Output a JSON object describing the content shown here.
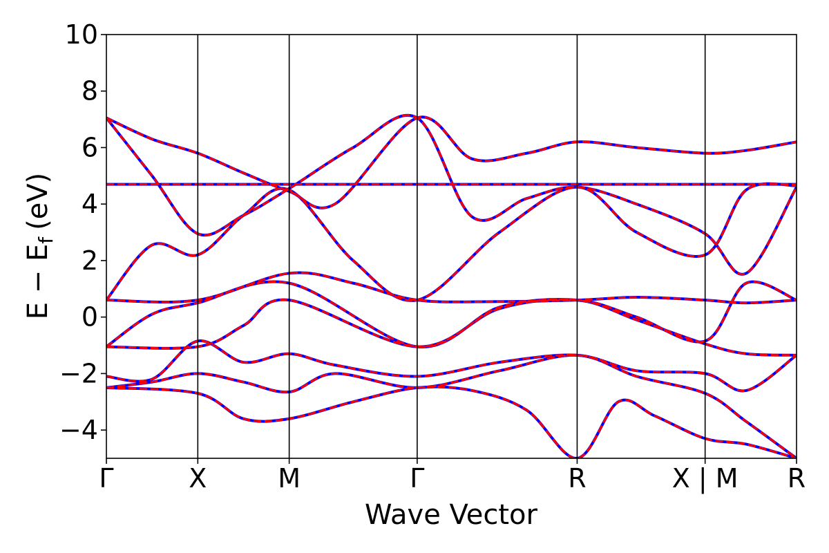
{
  "chart_data": {
    "type": "line",
    "title": "",
    "xlabel": "Wave Vector",
    "ylabel": "E − E",
    "ylabel_subscript": "f",
    "ylabel_unit": "(eV)",
    "ylim": [
      -5,
      10
    ],
    "yticks": [
      -4,
      -2,
      0,
      2,
      4,
      6,
      8,
      10
    ],
    "ytick_labels": [
      "−4",
      "−2",
      "0",
      "2",
      "4",
      "6",
      "8",
      "10"
    ],
    "grid": false,
    "legend": "none",
    "colors": {
      "primary_series": "#0000ff",
      "secondary_series": "#ff0000",
      "kpoint_lines": "#000000"
    },
    "x_segments": [
      {
        "from": 0,
        "to": 1,
        "count": 5
      }
    ],
    "kpoints": [
      {
        "x": 0.0,
        "label": "Γ"
      },
      {
        "x": 0.1,
        "label": "X"
      },
      {
        "x": 0.2,
        "label": "M"
      },
      {
        "x": 0.34,
        "label": "Γ"
      },
      {
        "x": 0.515,
        "label": "R"
      },
      {
        "x": 0.655,
        "label": "X | M"
      },
      {
        "x": 0.755,
        "label": "R"
      }
    ],
    "series": [
      {
        "color": "#0000ff",
        "style": "solid",
        "bands": [
          [
            [
              0,
              7.05
            ],
            [
              0.05,
              6.3
            ],
            [
              0.1,
              5.8
            ],
            [
              0.15,
              5.1
            ],
            [
              0.2,
              4.45
            ],
            [
              0.25,
              4.0
            ],
            [
              0.34,
              7.05
            ],
            [
              0.4,
              5.6
            ],
            [
              0.46,
              5.8
            ],
            [
              0.515,
              6.2
            ],
            [
              0.58,
              6.0
            ],
            [
              0.655,
              5.8
            ],
            [
              0.7,
              5.9
            ],
            [
              0.755,
              6.2
            ]
          ],
          [
            [
              0,
              7.05
            ],
            [
              0.05,
              5.0
            ],
            [
              0.1,
              2.95
            ],
            [
              0.15,
              3.6
            ],
            [
              0.2,
              4.55
            ],
            [
              0.27,
              6.0
            ],
            [
              0.34,
              7.05
            ],
            [
              0.4,
              3.55
            ],
            [
              0.46,
              4.2
            ],
            [
              0.515,
              4.6
            ],
            [
              0.58,
              4.0
            ],
            [
              0.655,
              2.95
            ],
            [
              0.7,
              1.55
            ],
            [
              0.755,
              4.6
            ]
          ],
          [
            [
              0,
              4.7
            ],
            [
              0.2,
              4.7
            ],
            [
              0.34,
              4.7
            ],
            [
              0.515,
              4.7
            ],
            [
              0.655,
              4.7
            ],
            [
              0.755,
              4.7
            ]
          ],
          [
            [
              0,
              0.6
            ],
            [
              0.05,
              2.55
            ],
            [
              0.1,
              2.2
            ],
            [
              0.15,
              3.6
            ],
            [
              0.2,
              4.5
            ],
            [
              0.27,
              2.0
            ],
            [
              0.34,
              0.6
            ],
            [
              0.43,
              3.0
            ],
            [
              0.515,
              4.6
            ],
            [
              0.58,
              3.0
            ],
            [
              0.655,
              2.2
            ],
            [
              0.7,
              4.5
            ],
            [
              0.755,
              4.65
            ]
          ],
          [
            [
              0,
              0.6
            ],
            [
              0.1,
              0.6
            ],
            [
              0.2,
              1.55
            ],
            [
              0.27,
              1.2
            ],
            [
              0.34,
              0.6
            ],
            [
              0.43,
              0.55
            ],
            [
              0.515,
              0.6
            ],
            [
              0.58,
              0.7
            ],
            [
              0.655,
              0.6
            ],
            [
              0.7,
              0.5
            ],
            [
              0.755,
              0.6
            ]
          ],
          [
            [
              0,
              -1.05
            ],
            [
              0.05,
              0.1
            ],
            [
              0.1,
              0.5
            ],
            [
              0.2,
              1.2
            ],
            [
              0.34,
              -1.05
            ],
            [
              0.43,
              0.35
            ],
            [
              0.515,
              0.6
            ],
            [
              0.58,
              0.0
            ],
            [
              0.655,
              -0.85
            ],
            [
              0.7,
              1.2
            ],
            [
              0.755,
              0.6
            ]
          ],
          [
            [
              0,
              -1.05
            ],
            [
              0.1,
              -1.05
            ],
            [
              0.15,
              -0.3
            ],
            [
              0.2,
              0.6
            ],
            [
              0.34,
              -1.05
            ],
            [
              0.43,
              0.3
            ],
            [
              0.515,
              0.6
            ],
            [
              0.58,
              -0.1
            ],
            [
              0.655,
              -0.95
            ],
            [
              0.7,
              -1.3
            ],
            [
              0.755,
              -1.35
            ]
          ],
          [
            [
              0,
              -2.1
            ],
            [
              0.05,
              -2.2
            ],
            [
              0.1,
              -0.85
            ],
            [
              0.15,
              -1.6
            ],
            [
              0.2,
              -1.3
            ],
            [
              0.25,
              -1.7
            ],
            [
              0.34,
              -2.1
            ],
            [
              0.43,
              -1.6
            ],
            [
              0.515,
              -1.35
            ],
            [
              0.58,
              -1.9
            ],
            [
              0.655,
              -2.0
            ],
            [
              0.7,
              -2.6
            ],
            [
              0.755,
              -1.35
            ]
          ],
          [
            [
              0,
              -2.5
            ],
            [
              0.05,
              -2.3
            ],
            [
              0.1,
              -2.0
            ],
            [
              0.15,
              -2.3
            ],
            [
              0.2,
              -2.65
            ],
            [
              0.25,
              -2.0
            ],
            [
              0.34,
              -2.5
            ],
            [
              0.43,
              -1.9
            ],
            [
              0.515,
              -1.35
            ],
            [
              0.58,
              -2.1
            ],
            [
              0.655,
              -2.7
            ],
            [
              0.7,
              -3.7
            ],
            [
              0.755,
              -5.0
            ]
          ],
          [
            [
              0,
              -2.5
            ],
            [
              0.1,
              -2.7
            ],
            [
              0.15,
              -3.6
            ],
            [
              0.2,
              -3.6
            ],
            [
              0.27,
              -3.0
            ],
            [
              0.34,
              -2.5
            ],
            [
              0.4,
              -2.6
            ],
            [
              0.46,
              -3.3
            ],
            [
              0.515,
              -5.0
            ],
            [
              0.56,
              -3.0
            ],
            [
              0.6,
              -3.5
            ],
            [
              0.655,
              -4.3
            ],
            [
              0.7,
              -4.5
            ],
            [
              0.755,
              -5.0
            ]
          ]
        ]
      },
      {
        "color": "#ff0000",
        "style": "dashed",
        "bands": [
          [
            [
              0,
              7.05
            ],
            [
              0.05,
              6.3
            ],
            [
              0.1,
              5.8
            ],
            [
              0.15,
              5.1
            ],
            [
              0.2,
              4.45
            ],
            [
              0.25,
              4.0
            ],
            [
              0.34,
              7.05
            ],
            [
              0.4,
              5.6
            ],
            [
              0.46,
              5.8
            ],
            [
              0.515,
              6.2
            ],
            [
              0.58,
              6.0
            ],
            [
              0.655,
              5.8
            ],
            [
              0.7,
              5.9
            ],
            [
              0.755,
              6.2
            ]
          ],
          [
            [
              0,
              7.05
            ],
            [
              0.05,
              5.0
            ],
            [
              0.1,
              2.95
            ],
            [
              0.15,
              3.6
            ],
            [
              0.2,
              4.55
            ],
            [
              0.27,
              6.0
            ],
            [
              0.34,
              7.05
            ],
            [
              0.4,
              3.55
            ],
            [
              0.46,
              4.2
            ],
            [
              0.515,
              4.6
            ],
            [
              0.58,
              4.0
            ],
            [
              0.655,
              2.95
            ],
            [
              0.7,
              1.55
            ],
            [
              0.755,
              4.6
            ]
          ],
          [
            [
              0,
              4.7
            ],
            [
              0.2,
              4.7
            ],
            [
              0.34,
              4.7
            ],
            [
              0.515,
              4.7
            ],
            [
              0.655,
              4.7
            ],
            [
              0.755,
              4.7
            ]
          ],
          [
            [
              0,
              0.6
            ],
            [
              0.05,
              2.55
            ],
            [
              0.1,
              2.2
            ],
            [
              0.15,
              3.6
            ],
            [
              0.2,
              4.5
            ],
            [
              0.27,
              2.0
            ],
            [
              0.34,
              0.6
            ],
            [
              0.43,
              3.0
            ],
            [
              0.515,
              4.6
            ],
            [
              0.58,
              3.0
            ],
            [
              0.655,
              2.2
            ],
            [
              0.7,
              4.5
            ],
            [
              0.755,
              4.65
            ]
          ],
          [
            [
              0,
              0.6
            ],
            [
              0.1,
              0.6
            ],
            [
              0.2,
              1.55
            ],
            [
              0.27,
              1.2
            ],
            [
              0.34,
              0.6
            ],
            [
              0.43,
              0.55
            ],
            [
              0.515,
              0.6
            ],
            [
              0.58,
              0.7
            ],
            [
              0.655,
              0.6
            ],
            [
              0.7,
              0.5
            ],
            [
              0.755,
              0.6
            ]
          ],
          [
            [
              0,
              -1.05
            ],
            [
              0.05,
              0.1
            ],
            [
              0.1,
              0.5
            ],
            [
              0.2,
              1.2
            ],
            [
              0.34,
              -1.05
            ],
            [
              0.43,
              0.35
            ],
            [
              0.515,
              0.6
            ],
            [
              0.58,
              0.0
            ],
            [
              0.655,
              -0.85
            ],
            [
              0.7,
              1.2
            ],
            [
              0.755,
              0.6
            ]
          ],
          [
            [
              0,
              -1.05
            ],
            [
              0.1,
              -1.05
            ],
            [
              0.15,
              -0.3
            ],
            [
              0.2,
              0.6
            ],
            [
              0.34,
              -1.05
            ],
            [
              0.43,
              0.3
            ],
            [
              0.515,
              0.6
            ],
            [
              0.58,
              -0.1
            ],
            [
              0.655,
              -0.95
            ],
            [
              0.7,
              -1.3
            ],
            [
              0.755,
              -1.35
            ]
          ],
          [
            [
              0,
              -2.1
            ],
            [
              0.05,
              -2.2
            ],
            [
              0.1,
              -0.85
            ],
            [
              0.15,
              -1.6
            ],
            [
              0.2,
              -1.3
            ],
            [
              0.25,
              -1.7
            ],
            [
              0.34,
              -2.1
            ],
            [
              0.43,
              -1.6
            ],
            [
              0.515,
              -1.35
            ],
            [
              0.58,
              -1.9
            ],
            [
              0.655,
              -2.0
            ],
            [
              0.7,
              -2.6
            ],
            [
              0.755,
              -1.35
            ]
          ],
          [
            [
              0,
              -2.5
            ],
            [
              0.05,
              -2.3
            ],
            [
              0.1,
              -2.0
            ],
            [
              0.15,
              -2.3
            ],
            [
              0.2,
              -2.65
            ],
            [
              0.25,
              -2.0
            ],
            [
              0.34,
              -2.5
            ],
            [
              0.43,
              -1.9
            ],
            [
              0.515,
              -1.35
            ],
            [
              0.58,
              -2.1
            ],
            [
              0.655,
              -2.7
            ],
            [
              0.7,
              -3.7
            ],
            [
              0.755,
              -5.0
            ]
          ],
          [
            [
              0,
              -2.5
            ],
            [
              0.1,
              -2.7
            ],
            [
              0.15,
              -3.6
            ],
            [
              0.2,
              -3.6
            ],
            [
              0.27,
              -3.0
            ],
            [
              0.34,
              -2.5
            ],
            [
              0.4,
              -2.6
            ],
            [
              0.46,
              -3.3
            ],
            [
              0.515,
              -5.0
            ],
            [
              0.56,
              -3.0
            ],
            [
              0.6,
              -3.5
            ],
            [
              0.655,
              -4.3
            ],
            [
              0.7,
              -4.5
            ],
            [
              0.755,
              -5.0
            ]
          ]
        ]
      }
    ]
  }
}
